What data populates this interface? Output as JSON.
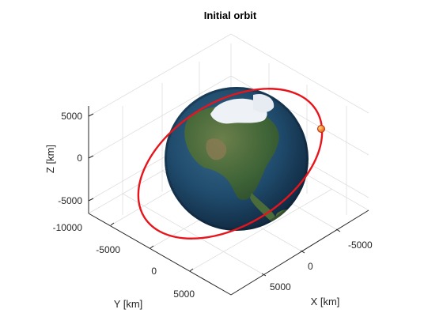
{
  "chart_data": {
    "type": "scatter3d",
    "title": "Initial orbit",
    "xlabel": "X [km]",
    "ylabel": "Y [km]",
    "zlabel": "Z [km]",
    "xticks": [
      "-5000",
      "0",
      "5000"
    ],
    "yticks": [
      "-10000",
      "-5000",
      "0",
      "5000"
    ],
    "zticks": [
      "5000",
      "0",
      "-5000"
    ],
    "grid": true,
    "view": "isometric 3D box",
    "central_body": "earth-globe",
    "orbit": {
      "name": "",
      "color": "#e8141b",
      "shape": "closed ellipse"
    },
    "satellite_marker": {
      "color": "#f07d15"
    }
  },
  "colors": {
    "axis": "#262626",
    "grid": "#dedede",
    "ocean": "#1f4f73",
    "land": "#3d6b3a",
    "ice": "#eef1f6"
  }
}
